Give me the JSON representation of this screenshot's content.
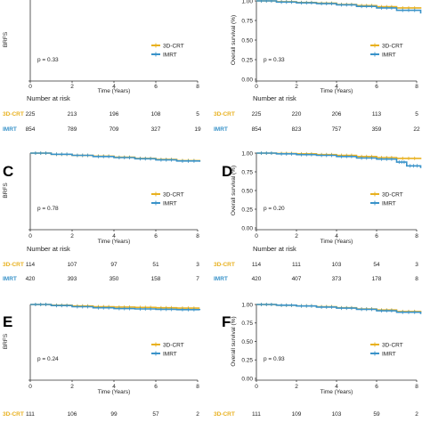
{
  "colors": {
    "3D-CRT": "#e8b120",
    "IMRT": "#3a93c9"
  },
  "chart_data": [
    {
      "type": "line",
      "panel": "",
      "ylabel": "BRFS",
      "xlabel": "Time (Years)",
      "xlim": [
        0,
        8
      ],
      "ylim": [
        0,
        1.0
      ],
      "xticks": [
        0,
        2,
        4,
        6,
        8
      ],
      "yticks": [
        "0.00",
        "0.25",
        "0.50",
        "0.75",
        "1.00"
      ],
      "show_yticks": false,
      "p_value": "p = 0.33",
      "legend": [
        "3D-CRT",
        "IMRT"
      ],
      "series": [
        {
          "name": "3D-CRT",
          "x": [
            0,
            1,
            2,
            3,
            4,
            5,
            6,
            7,
            8.3
          ],
          "y": [
            1.0,
            0.985,
            0.975,
            0.965,
            0.955,
            0.945,
            0.935,
            0.93,
            0.93
          ]
        },
        {
          "name": "IMRT",
          "x": [
            0,
            1,
            2,
            3,
            4,
            5,
            6,
            7,
            8.3
          ],
          "y": [
            1.0,
            0.98,
            0.965,
            0.955,
            0.945,
            0.935,
            0.925,
            0.92,
            0.915
          ]
        }
      ],
      "risk_title": "Number at risk",
      "risk_table": [
        {
          "group": "3D-CRT",
          "values": [
            "225",
            "213",
            "196",
            "108",
            "5"
          ]
        },
        {
          "group": "IMRT",
          "values": [
            "854",
            "789",
            "709",
            "327",
            "19"
          ]
        }
      ]
    },
    {
      "type": "line",
      "panel": "",
      "ylabel": "Overall survival (%)",
      "xlabel": "Time (Years)",
      "xlim": [
        0,
        8
      ],
      "ylim": [
        0,
        1.0
      ],
      "xticks": [
        0,
        2,
        4,
        6,
        8
      ],
      "yticks": [
        "0.00",
        "0.25",
        "0.50",
        "0.75",
        "1.00"
      ],
      "show_yticks": true,
      "p_value": "p = 0.33",
      "legend": [
        "3D-CRT",
        "IMRT"
      ],
      "series": [
        {
          "name": "3D-CRT",
          "x": [
            0,
            1,
            2,
            3,
            4,
            5,
            6,
            7,
            8.2
          ],
          "y": [
            1.0,
            0.99,
            0.98,
            0.97,
            0.955,
            0.94,
            0.925,
            0.91,
            0.9
          ]
        },
        {
          "name": "IMRT",
          "x": [
            0,
            1,
            2,
            3,
            4,
            5,
            6,
            7,
            8.2
          ],
          "y": [
            1.0,
            0.985,
            0.975,
            0.965,
            0.95,
            0.93,
            0.91,
            0.88,
            0.84
          ]
        }
      ],
      "risk_title": "Number at risk",
      "risk_table": [
        {
          "group": "3D-CRT",
          "values": [
            "225",
            "220",
            "206",
            "113",
            "5"
          ]
        },
        {
          "group": "IMRT",
          "values": [
            "854",
            "823",
            "757",
            "359",
            "22"
          ]
        }
      ]
    },
    {
      "type": "line",
      "panel": "C",
      "ylabel": "BRFS",
      "xlabel": "Time (Years)",
      "xlim": [
        0,
        8
      ],
      "ylim": [
        0,
        1.0
      ],
      "xticks": [
        0,
        2,
        4,
        6,
        8
      ],
      "yticks": [
        "0.00",
        "0.25",
        "0.50",
        "0.75",
        "1.00"
      ],
      "show_yticks": false,
      "p_value": "p = 0.78",
      "legend": [
        "3D-CRT",
        "IMRT"
      ],
      "series": [
        {
          "name": "3D-CRT",
          "x": [
            0,
            1,
            2,
            3,
            4,
            5,
            6,
            7,
            8.1
          ],
          "y": [
            1.0,
            0.985,
            0.97,
            0.96,
            0.945,
            0.93,
            0.915,
            0.9,
            0.89
          ]
        },
        {
          "name": "IMRT",
          "x": [
            0,
            1,
            2,
            3,
            4,
            5,
            6,
            7,
            8.1
          ],
          "y": [
            1.0,
            0.985,
            0.97,
            0.955,
            0.94,
            0.925,
            0.91,
            0.895,
            0.885
          ]
        }
      ],
      "risk_title": "Number at risk",
      "risk_table": [
        {
          "group": "3D-CRT",
          "values": [
            "114",
            "107",
            "97",
            "51",
            "3"
          ]
        },
        {
          "group": "IMRT",
          "values": [
            "420",
            "393",
            "350",
            "158",
            "7"
          ]
        }
      ]
    },
    {
      "type": "line",
      "panel": "D",
      "ylabel": "Overall survival (%)",
      "xlabel": "Time (Years)",
      "xlim": [
        0,
        8
      ],
      "ylim": [
        0,
        1.0
      ],
      "xticks": [
        0,
        2,
        4,
        6,
        8
      ],
      "yticks": [
        "0.00",
        "0.25",
        "0.50",
        "0.75",
        "1.00"
      ],
      "show_yticks": true,
      "p_value": "p = 0.20",
      "legend": [
        "3D-CRT",
        "IMRT"
      ],
      "series": [
        {
          "name": "3D-CRT",
          "x": [
            0,
            1,
            2,
            3,
            4,
            5,
            6,
            7,
            8.2
          ],
          "y": [
            1.0,
            0.995,
            0.99,
            0.98,
            0.97,
            0.955,
            0.94,
            0.93,
            0.92
          ]
        },
        {
          "name": "IMRT",
          "x": [
            0,
            1,
            2,
            3,
            4,
            5,
            6,
            7,
            7.5,
            8.2
          ],
          "y": [
            1.0,
            0.99,
            0.98,
            0.97,
            0.955,
            0.935,
            0.92,
            0.88,
            0.83,
            0.8
          ]
        }
      ],
      "risk_title": "Number at risk",
      "risk_table": [
        {
          "group": "3D-CRT",
          "values": [
            "114",
            "111",
            "103",
            "54",
            "3"
          ]
        },
        {
          "group": "IMRT",
          "values": [
            "420",
            "407",
            "373",
            "178",
            "8"
          ]
        }
      ]
    },
    {
      "type": "line",
      "panel": "E",
      "ylabel": "BRFS",
      "xlabel": "Time (Years)",
      "xlim": [
        0,
        8
      ],
      "ylim": [
        0,
        1.0
      ],
      "xticks": [
        0,
        2,
        4,
        6,
        8
      ],
      "yticks": [
        "0.00",
        "0.25",
        "0.50",
        "0.75",
        "1.00"
      ],
      "show_yticks": false,
      "p_value": "p = 0.24",
      "legend": [
        "3D-CRT",
        "IMRT"
      ],
      "series": [
        {
          "name": "3D-CRT",
          "x": [
            0,
            1,
            2,
            3,
            4,
            5,
            6,
            7,
            8.1
          ],
          "y": [
            1.0,
            0.99,
            0.98,
            0.97,
            0.965,
            0.96,
            0.955,
            0.95,
            0.95
          ]
        },
        {
          "name": "IMRT",
          "x": [
            0,
            1,
            2,
            3,
            4,
            5,
            6,
            7,
            8.1
          ],
          "y": [
            1.0,
            0.985,
            0.97,
            0.955,
            0.945,
            0.94,
            0.935,
            0.93,
            0.925
          ]
        }
      ],
      "risk_title": "",
      "risk_table": [
        {
          "group": "3D-CRT",
          "values": [
            "111",
            "106",
            "99",
            "57",
            "2"
          ]
        }
      ]
    },
    {
      "type": "line",
      "panel": "F",
      "ylabel": "Overall survival (%)",
      "xlabel": "Time (Years)",
      "xlim": [
        0,
        8
      ],
      "ylim": [
        0,
        1.0
      ],
      "xticks": [
        0,
        2,
        4,
        6,
        8
      ],
      "yticks": [
        "0.00",
        "0.25",
        "0.50",
        "0.75",
        "1.00"
      ],
      "show_yticks": true,
      "p_value": "p = 0.93",
      "legend": [
        "3D-CRT",
        "IMRT"
      ],
      "series": [
        {
          "name": "3D-CRT",
          "x": [
            0,
            1,
            2,
            3,
            4,
            5,
            6,
            7,
            8.2
          ],
          "y": [
            1.0,
            0.99,
            0.98,
            0.97,
            0.955,
            0.94,
            0.925,
            0.905,
            0.89
          ]
        },
        {
          "name": "IMRT",
          "x": [
            0,
            1,
            2,
            3,
            4,
            5,
            6,
            7,
            8.2
          ],
          "y": [
            1.0,
            0.99,
            0.98,
            0.965,
            0.95,
            0.935,
            0.915,
            0.895,
            0.87
          ]
        }
      ],
      "risk_title": "",
      "risk_table": [
        {
          "group": "3D-CRT",
          "values": [
            "111",
            "109",
            "103",
            "59",
            "2"
          ]
        }
      ]
    }
  ]
}
